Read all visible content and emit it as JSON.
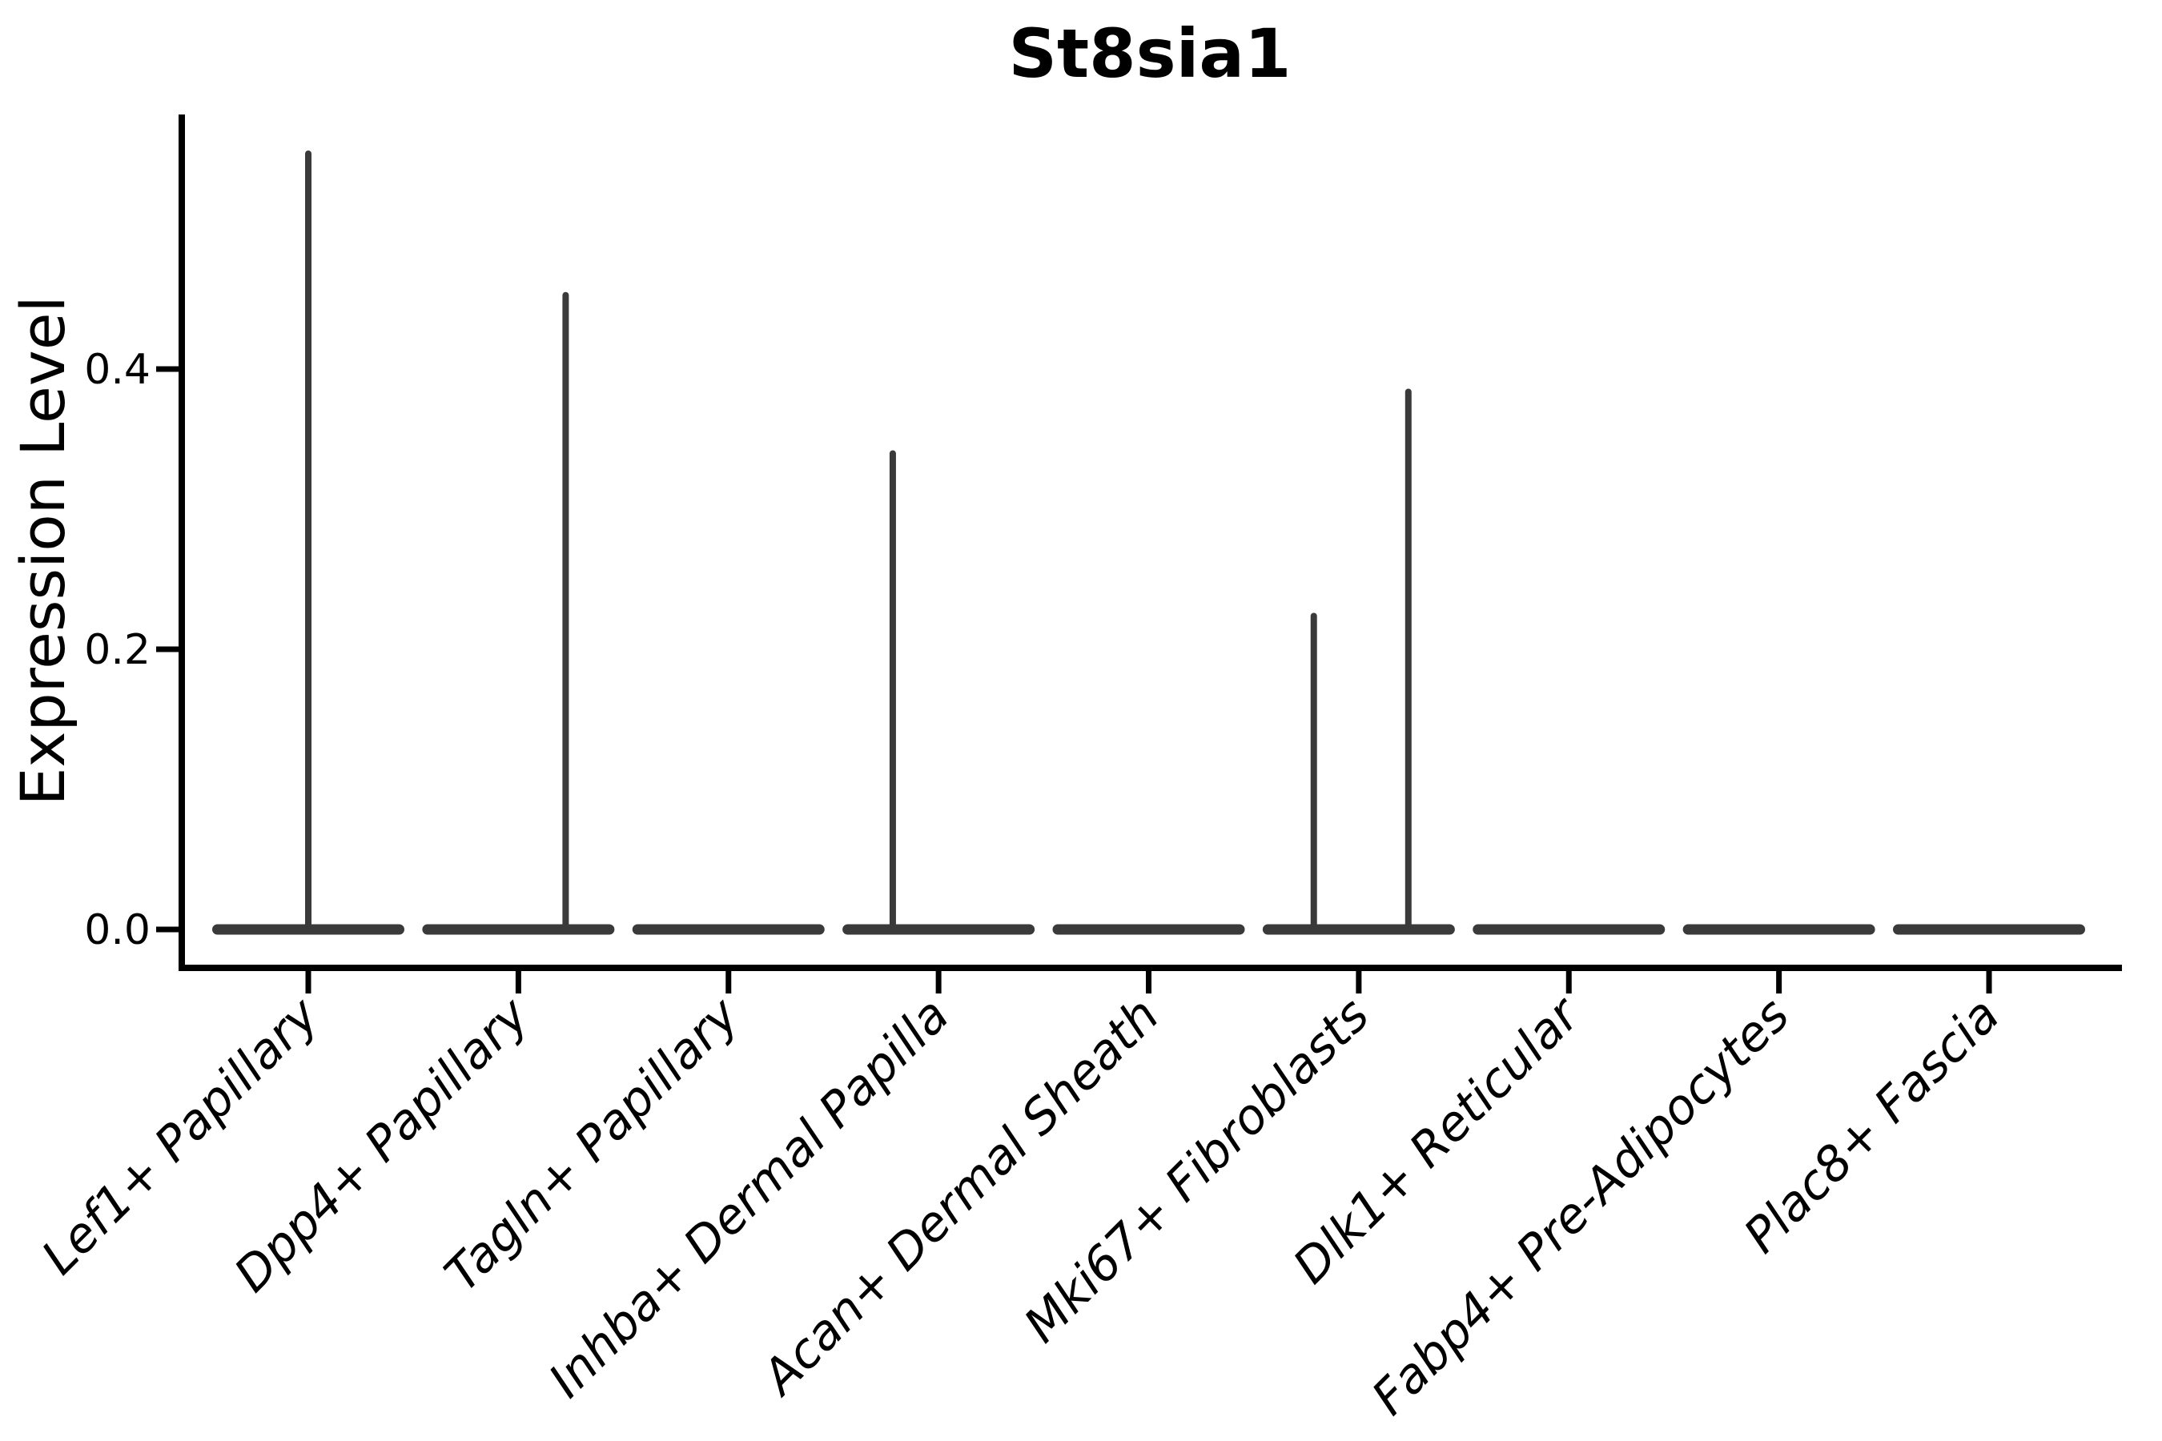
{
  "title": "St8sia1",
  "axes": {
    "ylabel": "Expression Level",
    "xlabel": "",
    "ytick_labels": [
      "0.0",
      "0.2",
      "0.4"
    ]
  },
  "colors": {
    "background": "#ffffff",
    "axis": "#000000",
    "text": "#000000",
    "violin": "#3a3a3a"
  },
  "chart_data": {
    "type": "violin",
    "title": "St8sia1",
    "xlabel": "",
    "ylabel": "Expression Level",
    "grid": false,
    "legend": null,
    "yticks": [
      0.0,
      0.2,
      0.4
    ],
    "ylim": [
      -0.027,
      0.582
    ],
    "xtick_label_rotation_deg": 45,
    "xtick_label_style": "italic",
    "categories": [
      "Lef1+ Papillary",
      "Dpp4+ Papillary",
      "Tagln+ Papillary",
      "Inhba+ Dermal Papilla",
      "Acan+ Dermal Sheath",
      "Mki67+ Fibroblasts",
      "Dlk1+ Reticular",
      "Fabp4+ Pre-Adipocytes",
      "Plac8+ Fascia"
    ],
    "violins": [
      {
        "category": "Lef1+ Papillary",
        "body_value": 0.0,
        "max_expression": 0.556,
        "spikes": [
          {
            "x_offset": 0.0,
            "peak": 0.556
          }
        ]
      },
      {
        "category": "Dpp4+ Papillary",
        "body_value": 0.0,
        "max_expression": 0.455,
        "spikes": [
          {
            "x_offset": 0.225,
            "peak": 0.455
          }
        ]
      },
      {
        "category": "Tagln+ Papillary",
        "body_value": 0.0,
        "max_expression": 0.0,
        "spikes": []
      },
      {
        "category": "Inhba+ Dermal Papilla",
        "body_value": 0.0,
        "max_expression": 0.342,
        "spikes": [
          {
            "x_offset": -0.218,
            "peak": 0.342
          }
        ]
      },
      {
        "category": "Acan+ Dermal Sheath",
        "body_value": 0.0,
        "max_expression": 0.0,
        "spikes": []
      },
      {
        "category": "Mki67+ Fibroblasts",
        "body_value": 0.0,
        "max_expression": 0.386,
        "spikes": [
          {
            "x_offset": -0.214,
            "peak": 0.226
          },
          {
            "x_offset": 0.236,
            "peak": 0.386
          }
        ]
      },
      {
        "category": "Dlk1+ Reticular",
        "body_value": 0.0,
        "max_expression": 0.0,
        "spikes": []
      },
      {
        "category": "Fabp4+ Pre-Adipocytes",
        "body_value": 0.0,
        "max_expression": 0.0,
        "spikes": []
      },
      {
        "category": "Plac8+ Fascia",
        "body_value": 0.0,
        "max_expression": 0.0,
        "spikes": []
      }
    ]
  }
}
